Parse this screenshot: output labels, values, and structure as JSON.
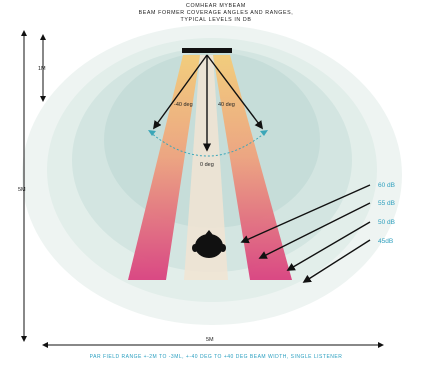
{
  "title": {
    "line1": "COMHEAR MYBEAM",
    "line2": "BEAM FORMER COVERAGE ANGLES AND RANGES,",
    "line3": "TYPICAL LEVELS IN DB"
  },
  "labels": {
    "top_dimension": "1M",
    "vertical_dimension": "5M",
    "horizontal_dimension": "5M",
    "left_angle": "-40 deg",
    "right_angle": "40 deg",
    "center_angle": "0 deg"
  },
  "levels": [
    {
      "label": "60 dB",
      "color": "#2e9fbe"
    },
    {
      "label": "55 dB",
      "color": "#2e9fbe"
    },
    {
      "label": "50 dB",
      "color": "#2e9fbe"
    },
    {
      "label": "45dB",
      "color": "#2e9fbe"
    }
  ],
  "footer": "PAR FIELD RANGE +-2M TO -3ML, +-40 DEG TO +40 DEG BEAM WIDTH, SINGLE LISTENER",
  "colors": {
    "accent": "#2e9fbe",
    "beam_top": "#f2c36e",
    "beam_bottom": "#d9407f",
    "zone_outer": "#eaf2ef",
    "zone_inner": "#cfe3df"
  }
}
